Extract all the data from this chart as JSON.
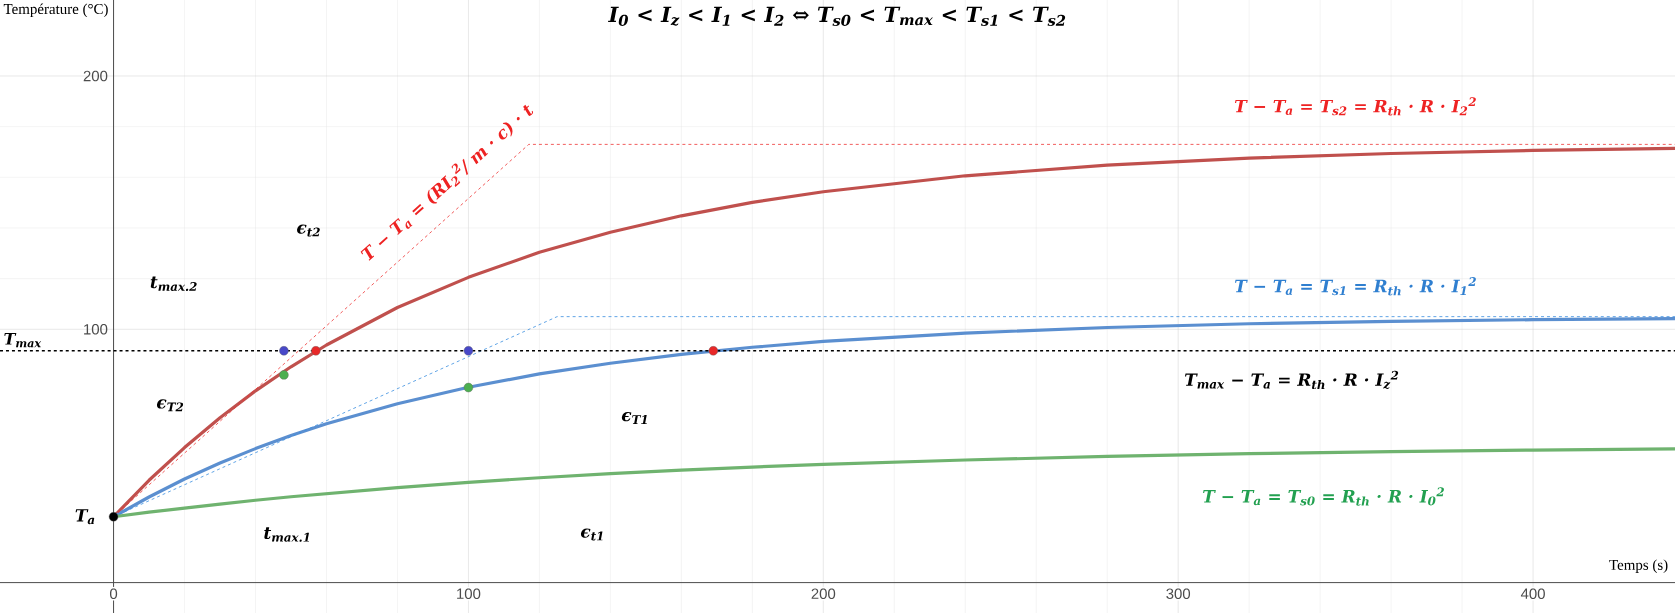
{
  "chart_data": {
    "type": "line",
    "title": "I$_{0}$ < I$_{z}$ < I$_{1}$ < I$_{2}$ ⇔ T$_{s0}$ < T$_{max}$ < T$_{s1}$ < T$_{s2}$",
    "xlabel": "Temps (s)",
    "ylabel": "Température (°C)",
    "xlim": [
      -32,
      440
    ],
    "ylim": [
      -12,
      230
    ],
    "xticks": [
      0,
      100,
      200,
      300,
      400
    ],
    "yticks": [
      100,
      200
    ],
    "grid": true,
    "x": [
      0,
      10,
      20,
      30,
      40,
      50,
      60,
      80,
      100,
      120,
      140,
      160,
      180,
      200,
      240,
      280,
      320,
      360,
      400,
      440
    ],
    "series": [
      {
        "color": "#c0504d",
        "values": [
          26,
          40.4,
          53.3,
          65.1,
          75.7,
          85.2,
          93.8,
          108.6,
          120.5,
          130.4,
          138.3,
          144.8,
          150.1,
          154.3,
          160.6,
          164.8,
          167.6,
          169.4,
          170.6,
          171.4
        ]
      },
      {
        "color": "#5b8fd0",
        "values": [
          26,
          33.8,
          40.9,
          47.2,
          52.9,
          58.1,
          62.7,
          70.6,
          77.1,
          82.4,
          86.6,
          90.1,
          92.9,
          95.2,
          98.5,
          100.7,
          102.2,
          103.1,
          103.8,
          104.2
        ]
      },
      {
        "color": "#6fb36f",
        "values": [
          26,
          27.8,
          29.4,
          31.0,
          32.5,
          33.9,
          35.1,
          37.5,
          39.6,
          41.4,
          43.0,
          44.4,
          45.6,
          46.7,
          48.4,
          49.8,
          50.9,
          51.7,
          52.3,
          52.8
        ]
      },
      {
        "color": "#ee3333",
        "x": [
          0,
          117,
          440
        ],
        "values": [
          26,
          173,
          173
        ],
        "line_style": "dashed"
      },
      {
        "color": "#3a8ee0",
        "x": [
          0,
          125,
          440
        ],
        "values": [
          26,
          105,
          105
        ],
        "line_style": "dashed"
      },
      {
        "type": "scatter",
        "color": "#4848c8",
        "x": [
          48,
          100
        ],
        "values": [
          91.5,
          91.5
        ],
        "marker": "circle"
      },
      {
        "type": "scatter",
        "color": "#e82828",
        "x": [
          57,
          169
        ],
        "values": [
          91.5,
          91.5
        ],
        "marker": "circle"
      },
      {
        "type": "scatter",
        "color": "#4caf50",
        "x": [
          48,
          100
        ],
        "values": [
          82,
          77
        ],
        "marker": "circle"
      },
      {
        "type": "scatter",
        "color": "#000000",
        "x": [
          0
        ],
        "values": [
          26
        ],
        "marker": "circle"
      }
    ],
    "ref_lines": [
      {
        "axis": "y",
        "value": 91.5,
        "label": "T$_{max}$",
        "color": "#000000",
        "line_style": "dashed"
      }
    ],
    "annotations": [
      "T − T$_{a}$ = T$_{s2}$ = R$_{th}$ · R · I$_{2}$$^{2}$",
      "T − T$_{a}$ = T$_{s1}$ = R$_{th}$ · R · I$_{1}$$^{2}$",
      "T$_{max}$ − T$_{a}$ = R$_{th}$ · R · I$_{z}$$^{2}$",
      "T − T$_{a}$ = T$_{s0}$ = R$_{th}$ · R · I$_{0}$$^{2}$",
      "T − T$_{a}$ = (RI$_{2}$$^{2}$/ m · c) · t",
      "T$_{a}$",
      "t$_{max.2}$",
      "ϵ$_{t2}$",
      "ϵ$_{T2}$",
      "ϵ$_{T1}$",
      "t$_{max.1}$",
      "ϵ$_{t1}$"
    ]
  }
}
